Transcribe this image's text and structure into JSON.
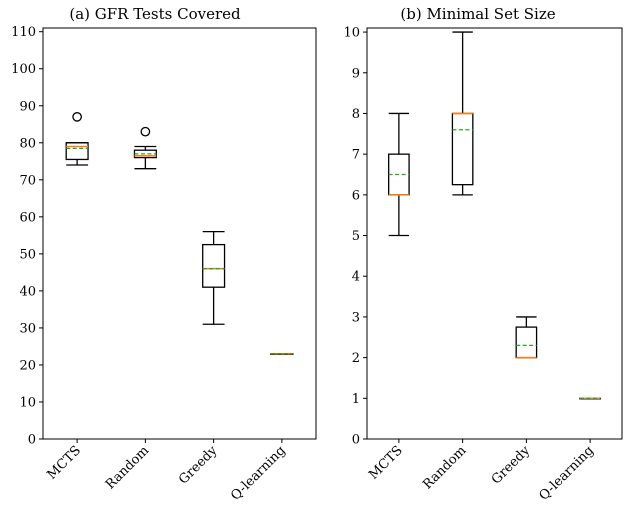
{
  "chart_data": [
    {
      "type": "box",
      "title": "(a) GFR Tests Covered",
      "xlabel": "",
      "ylabel": "",
      "categories": [
        "MCTS",
        "Random",
        "Greedy",
        "Q-learning"
      ],
      "ylim": [
        0,
        111
      ],
      "yticks": [
        0,
        10,
        20,
        30,
        40,
        50,
        60,
        70,
        80,
        90,
        100,
        110
      ],
      "boxes": [
        {
          "whisker_low": 74,
          "q1": 75.5,
          "median": 79,
          "mean": 78.5,
          "q3": 80,
          "whisker_high": 80,
          "outliers": [
            87
          ]
        },
        {
          "whisker_low": 73,
          "q1": 76,
          "median": 76.5,
          "mean": 77,
          "q3": 78,
          "whisker_high": 79,
          "outliers": [
            83
          ]
        },
        {
          "whisker_low": 31,
          "q1": 41,
          "median": 46,
          "mean": 46,
          "q3": 52.5,
          "whisker_high": 56,
          "outliers": []
        },
        {
          "whisker_low": 23,
          "q1": 23,
          "median": 23,
          "mean": 23,
          "q3": 23,
          "whisker_high": 23,
          "outliers": []
        }
      ]
    },
    {
      "type": "box",
      "title": "(b) Minimal Set Size",
      "xlabel": "",
      "ylabel": "",
      "categories": [
        "MCTS",
        "Random",
        "Greedy",
        "Q-learning"
      ],
      "ylim": [
        0,
        10.1
      ],
      "yticks": [
        0,
        1,
        2,
        3,
        4,
        5,
        6,
        7,
        8,
        9,
        10
      ],
      "boxes": [
        {
          "whisker_low": 5,
          "q1": 6,
          "median": 6,
          "mean": 6.5,
          "q3": 7,
          "whisker_high": 8,
          "outliers": []
        },
        {
          "whisker_low": 6,
          "q1": 6.25,
          "median": 8,
          "mean": 7.6,
          "q3": 8,
          "whisker_high": 10,
          "outliers": []
        },
        {
          "whisker_low": 2,
          "q1": 2,
          "median": 2,
          "mean": 2.3,
          "q3": 2.75,
          "whisker_high": 3,
          "outliers": []
        },
        {
          "whisker_low": 1,
          "q1": 1,
          "median": 1,
          "mean": 1,
          "q3": 1,
          "whisker_high": 1,
          "outliers": []
        }
      ]
    }
  ],
  "colors": {
    "median": "#ff7f0e",
    "mean": "#2ca02c",
    "box": "#000000"
  }
}
